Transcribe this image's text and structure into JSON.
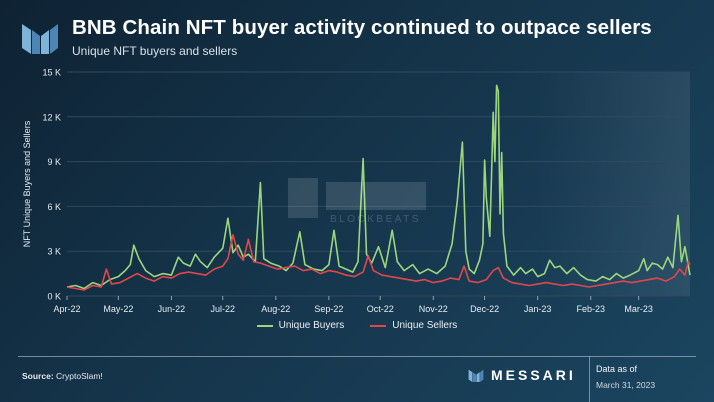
{
  "header": {
    "title": "BNB Chain NFT buyer activity continued to outpace sellers",
    "subtitle": "Unique NFT buyers and sellers"
  },
  "footer": {
    "source_label": "Source:",
    "source_value": "CryptoSlam!",
    "brand": "MESSARI",
    "data_as_of_label": "Data as of",
    "data_as_of_date": "March 31, 2023"
  },
  "watermark": "BLOCKBEATS",
  "colors": {
    "buyers": "#9bd67f",
    "sellers": "#e0474c",
    "grid": "#2f4a5e"
  },
  "chart_data": {
    "type": "line",
    "title": "BNB Chain NFT buyer activity continued to outpace sellers",
    "subtitle": "Unique NFT buyers and sellers",
    "xlabel": "",
    "ylabel": "NFT Unique Buyers and Sellers",
    "ylim": [
      0,
      15000
    ],
    "y_ticks": [
      0,
      3000,
      6000,
      9000,
      12000,
      15000
    ],
    "y_tick_labels": [
      "0 K",
      "3 K",
      "6 K",
      "9 K",
      "12 K",
      "15 K"
    ],
    "x_range": [
      "2022-04-01",
      "2023-03-31"
    ],
    "x_tick_labels": [
      "Apr-22",
      "May-22",
      "Jun-22",
      "Jul-22",
      "Aug-22",
      "Sep-22",
      "Oct-22",
      "Nov-22",
      "Dec-22",
      "Jan-23",
      "Feb-23",
      "Mar-23"
    ],
    "x_tick_dates": [
      "2022-04-01",
      "2022-05-01",
      "2022-06-01",
      "2022-07-01",
      "2022-08-01",
      "2022-09-01",
      "2022-10-01",
      "2022-11-01",
      "2022-12-01",
      "2023-01-01",
      "2023-02-01",
      "2023-03-01"
    ],
    "grid": true,
    "legend": "bottom",
    "series": [
      {
        "name": "Unique Buyers",
        "points": [
          [
            "2022-04-01",
            600
          ],
          [
            "2022-04-06",
            700
          ],
          [
            "2022-04-11",
            500
          ],
          [
            "2022-04-16",
            900
          ],
          [
            "2022-04-21",
            700
          ],
          [
            "2022-04-26",
            1100
          ],
          [
            "2022-05-01",
            1300
          ],
          [
            "2022-05-05",
            1700
          ],
          [
            "2022-05-08",
            2100
          ],
          [
            "2022-05-10",
            3400
          ],
          [
            "2022-05-13",
            2500
          ],
          [
            "2022-05-17",
            1700
          ],
          [
            "2022-05-22",
            1300
          ],
          [
            "2022-05-27",
            1500
          ],
          [
            "2022-06-01",
            1400
          ],
          [
            "2022-06-05",
            2600
          ],
          [
            "2022-06-08",
            2200
          ],
          [
            "2022-06-12",
            2000
          ],
          [
            "2022-06-15",
            2800
          ],
          [
            "2022-06-18",
            2300
          ],
          [
            "2022-06-22",
            1900
          ],
          [
            "2022-06-26",
            2600
          ],
          [
            "2022-07-01",
            3200
          ],
          [
            "2022-07-04",
            5200
          ],
          [
            "2022-07-07",
            2900
          ],
          [
            "2022-07-10",
            3400
          ],
          [
            "2022-07-13",
            2600
          ],
          [
            "2022-07-16",
            2800
          ],
          [
            "2022-07-20",
            2300
          ],
          [
            "2022-07-23",
            7600
          ],
          [
            "2022-07-25",
            2500
          ],
          [
            "2022-07-29",
            2200
          ],
          [
            "2022-08-03",
            2000
          ],
          [
            "2022-08-07",
            1700
          ],
          [
            "2022-08-11",
            2200
          ],
          [
            "2022-08-15",
            4300
          ],
          [
            "2022-08-18",
            2100
          ],
          [
            "2022-08-23",
            1800
          ],
          [
            "2022-08-28",
            1700
          ],
          [
            "2022-09-01",
            2100
          ],
          [
            "2022-09-04",
            4400
          ],
          [
            "2022-09-07",
            2000
          ],
          [
            "2022-09-11",
            1800
          ],
          [
            "2022-09-15",
            1600
          ],
          [
            "2022-09-18",
            2300
          ],
          [
            "2022-09-21",
            9200
          ],
          [
            "2022-09-23",
            2800
          ],
          [
            "2022-09-26",
            2200
          ],
          [
            "2022-09-30",
            3300
          ],
          [
            "2022-10-04",
            1900
          ],
          [
            "2022-10-08",
            4400
          ],
          [
            "2022-10-11",
            2300
          ],
          [
            "2022-10-15",
            1700
          ],
          [
            "2022-10-20",
            2100
          ],
          [
            "2022-10-24",
            1500
          ],
          [
            "2022-10-29",
            1800
          ],
          [
            "2022-11-03",
            1500
          ],
          [
            "2022-11-08",
            2000
          ],
          [
            "2022-11-12",
            3500
          ],
          [
            "2022-11-15",
            6300
          ],
          [
            "2022-11-18",
            10300
          ],
          [
            "2022-11-20",
            3000
          ],
          [
            "2022-11-22",
            1800
          ],
          [
            "2022-11-25",
            1500
          ],
          [
            "2022-11-28",
            2400
          ],
          [
            "2022-11-30",
            3500
          ],
          [
            "2022-12-01",
            9100
          ],
          [
            "2022-12-02",
            6600
          ],
          [
            "2022-12-04",
            4000
          ],
          [
            "2022-12-05",
            8000
          ],
          [
            "2022-12-06",
            12300
          ],
          [
            "2022-12-07",
            9000
          ],
          [
            "2022-12-08",
            14100
          ],
          [
            "2022-12-09",
            13700
          ],
          [
            "2022-12-10",
            5500
          ],
          [
            "2022-12-11",
            9600
          ],
          [
            "2022-12-12",
            4200
          ],
          [
            "2022-12-14",
            2000
          ],
          [
            "2022-12-18",
            1400
          ],
          [
            "2022-12-22",
            1900
          ],
          [
            "2022-12-25",
            1500
          ],
          [
            "2022-12-29",
            1800
          ],
          [
            "2023-01-01",
            1300
          ],
          [
            "2023-01-05",
            1500
          ],
          [
            "2023-01-08",
            2400
          ],
          [
            "2023-01-11",
            1900
          ],
          [
            "2023-01-14",
            2000
          ],
          [
            "2023-01-18",
            1500
          ],
          [
            "2023-01-22",
            1900
          ],
          [
            "2023-01-26",
            1400
          ],
          [
            "2023-01-30",
            1100
          ],
          [
            "2023-02-04",
            1000
          ],
          [
            "2023-02-08",
            1300
          ],
          [
            "2023-02-12",
            1100
          ],
          [
            "2023-02-16",
            1500
          ],
          [
            "2023-02-20",
            1200
          ],
          [
            "2023-02-24",
            1400
          ],
          [
            "2023-03-01",
            1700
          ],
          [
            "2023-03-04",
            2500
          ],
          [
            "2023-03-06",
            1700
          ],
          [
            "2023-03-09",
            2200
          ],
          [
            "2023-03-12",
            2100
          ],
          [
            "2023-03-15",
            1800
          ],
          [
            "2023-03-18",
            2600
          ],
          [
            "2023-03-21",
            1900
          ],
          [
            "2023-03-24",
            5400
          ],
          [
            "2023-03-26",
            2300
          ],
          [
            "2023-03-28",
            3300
          ],
          [
            "2023-03-31",
            1400
          ]
        ]
      },
      {
        "name": "Unique Sellers",
        "points": [
          [
            "2022-04-01",
            600
          ],
          [
            "2022-04-06",
            500
          ],
          [
            "2022-04-11",
            400
          ],
          [
            "2022-04-16",
            700
          ],
          [
            "2022-04-21",
            600
          ],
          [
            "2022-04-24",
            1800
          ],
          [
            "2022-04-27",
            800
          ],
          [
            "2022-05-02",
            900
          ],
          [
            "2022-05-07",
            1200
          ],
          [
            "2022-05-12",
            1500
          ],
          [
            "2022-05-17",
            1200
          ],
          [
            "2022-05-22",
            1000
          ],
          [
            "2022-05-27",
            1300
          ],
          [
            "2022-06-01",
            1200
          ],
          [
            "2022-06-06",
            1500
          ],
          [
            "2022-06-11",
            1600
          ],
          [
            "2022-06-16",
            1500
          ],
          [
            "2022-06-21",
            1400
          ],
          [
            "2022-06-26",
            1800
          ],
          [
            "2022-07-01",
            2000
          ],
          [
            "2022-07-04",
            2500
          ],
          [
            "2022-07-07",
            4100
          ],
          [
            "2022-07-10",
            2800
          ],
          [
            "2022-07-13",
            2400
          ],
          [
            "2022-07-16",
            3800
          ],
          [
            "2022-07-19",
            2300
          ],
          [
            "2022-07-23",
            2200
          ],
          [
            "2022-07-28",
            2000
          ],
          [
            "2022-08-02",
            1800
          ],
          [
            "2022-08-07",
            1900
          ],
          [
            "2022-08-12",
            2000
          ],
          [
            "2022-08-17",
            1700
          ],
          [
            "2022-08-22",
            1800
          ],
          [
            "2022-08-27",
            1500
          ],
          [
            "2022-09-01",
            1700
          ],
          [
            "2022-09-06",
            1600
          ],
          [
            "2022-09-11",
            1400
          ],
          [
            "2022-09-16",
            1300
          ],
          [
            "2022-09-21",
            1600
          ],
          [
            "2022-09-24",
            2700
          ],
          [
            "2022-09-27",
            1700
          ],
          [
            "2022-10-02",
            1400
          ],
          [
            "2022-10-07",
            1300
          ],
          [
            "2022-10-12",
            1200
          ],
          [
            "2022-10-17",
            1100
          ],
          [
            "2022-10-22",
            1000
          ],
          [
            "2022-10-27",
            1100
          ],
          [
            "2022-11-01",
            900
          ],
          [
            "2022-11-06",
            1000
          ],
          [
            "2022-11-11",
            1200
          ],
          [
            "2022-11-16",
            1100
          ],
          [
            "2022-11-19",
            2000
          ],
          [
            "2022-11-22",
            1000
          ],
          [
            "2022-11-27",
            900
          ],
          [
            "2022-12-02",
            1100
          ],
          [
            "2022-12-06",
            1700
          ],
          [
            "2022-12-09",
            1900
          ],
          [
            "2022-12-12",
            1200
          ],
          [
            "2022-12-17",
            900
          ],
          [
            "2022-12-22",
            800
          ],
          [
            "2022-12-27",
            700
          ],
          [
            "2023-01-01",
            800
          ],
          [
            "2023-01-06",
            900
          ],
          [
            "2023-01-11",
            800
          ],
          [
            "2023-01-16",
            700
          ],
          [
            "2023-01-21",
            800
          ],
          [
            "2023-01-26",
            700
          ],
          [
            "2023-01-31",
            600
          ],
          [
            "2023-02-05",
            700
          ],
          [
            "2023-02-10",
            800
          ],
          [
            "2023-02-15",
            900
          ],
          [
            "2023-02-20",
            1000
          ],
          [
            "2023-02-25",
            900
          ],
          [
            "2023-03-02",
            1000
          ],
          [
            "2023-03-07",
            1100
          ],
          [
            "2023-03-12",
            1200
          ],
          [
            "2023-03-17",
            1000
          ],
          [
            "2023-03-22",
            1300
          ],
          [
            "2023-03-25",
            1800
          ],
          [
            "2023-03-28",
            1400
          ],
          [
            "2023-03-30",
            2300
          ],
          [
            "2023-03-31",
            2100
          ]
        ]
      }
    ]
  }
}
